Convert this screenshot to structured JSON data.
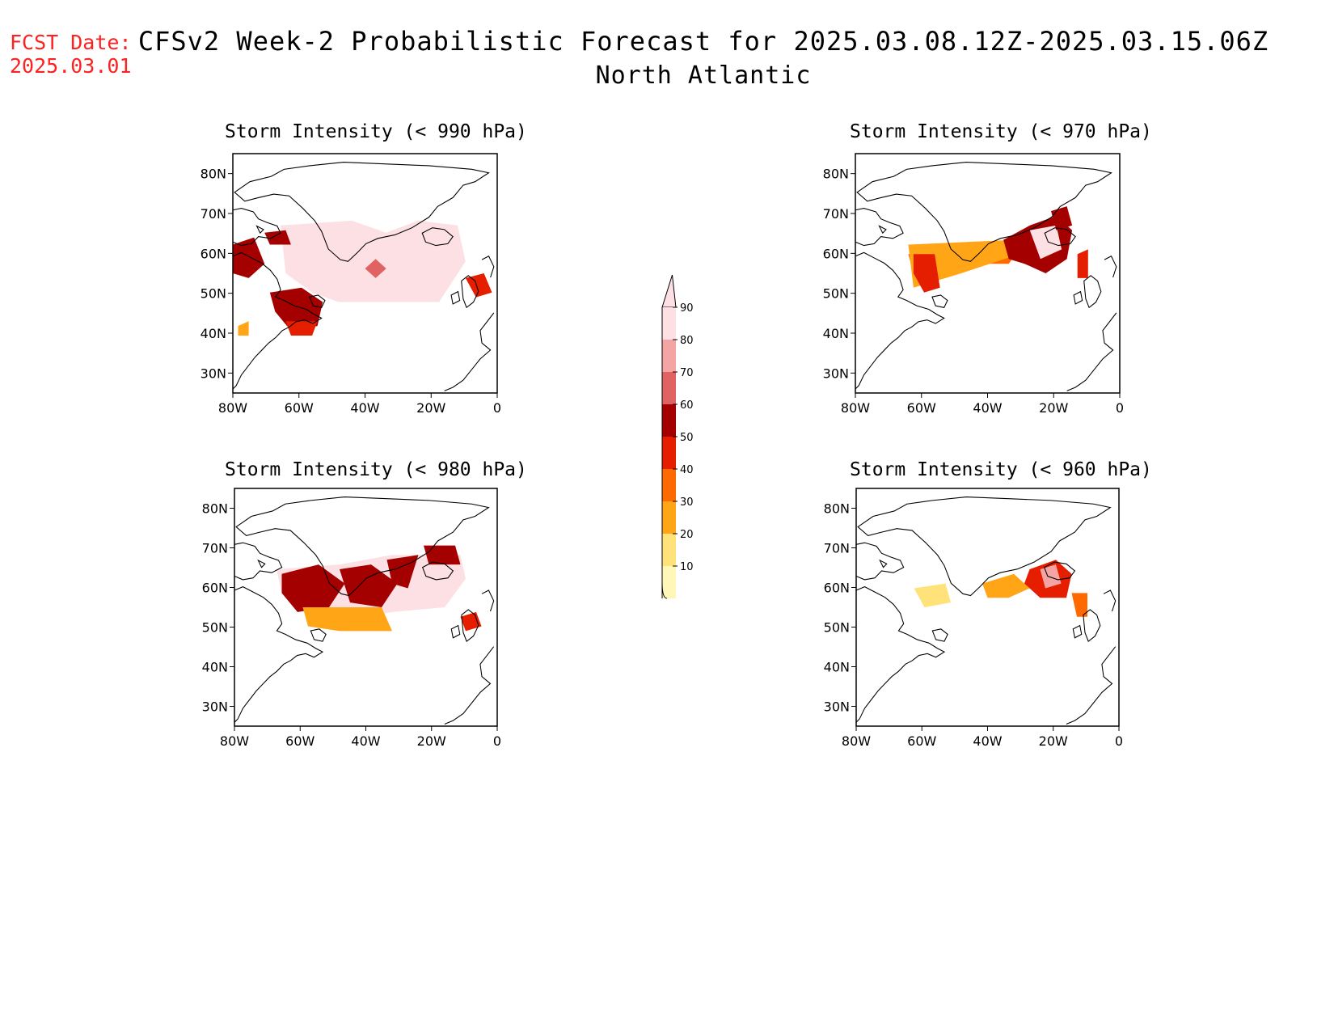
{
  "header": {
    "fcst_label": "FCST Date:",
    "fcst_date": "2025.03.01",
    "title": "CFSv2 Week-2 Probabilistic Forecast for 2025.03.08.12Z-2025.03.15.06Z",
    "subtitle": "North Atlantic"
  },
  "axes": {
    "lat_labels": [
      "80N",
      "70N",
      "60N",
      "50N",
      "40N",
      "30N"
    ],
    "lon_labels": [
      "80W",
      "60W",
      "40W",
      "20W",
      "0"
    ]
  },
  "panels": [
    {
      "title": "Storm Intensity (< 990 hPa)"
    },
    {
      "title": "Storm Intensity (< 970 hPa)"
    },
    {
      "title": "Storm Intensity (< 980 hPa)"
    },
    {
      "title": "Storm Intensity (< 960 hPa)"
    }
  ],
  "colorbar": {
    "levels": [
      "10",
      "20",
      "30",
      "40",
      "50",
      "60",
      "70",
      "80",
      "90"
    ],
    "colors": [
      "#fff7b8",
      "#ffe27a",
      "#ffa516",
      "#ff6a00",
      "#e61e00",
      "#a50000",
      "#e06262",
      "#f5a4a4",
      "#fde0e3"
    ]
  }
}
